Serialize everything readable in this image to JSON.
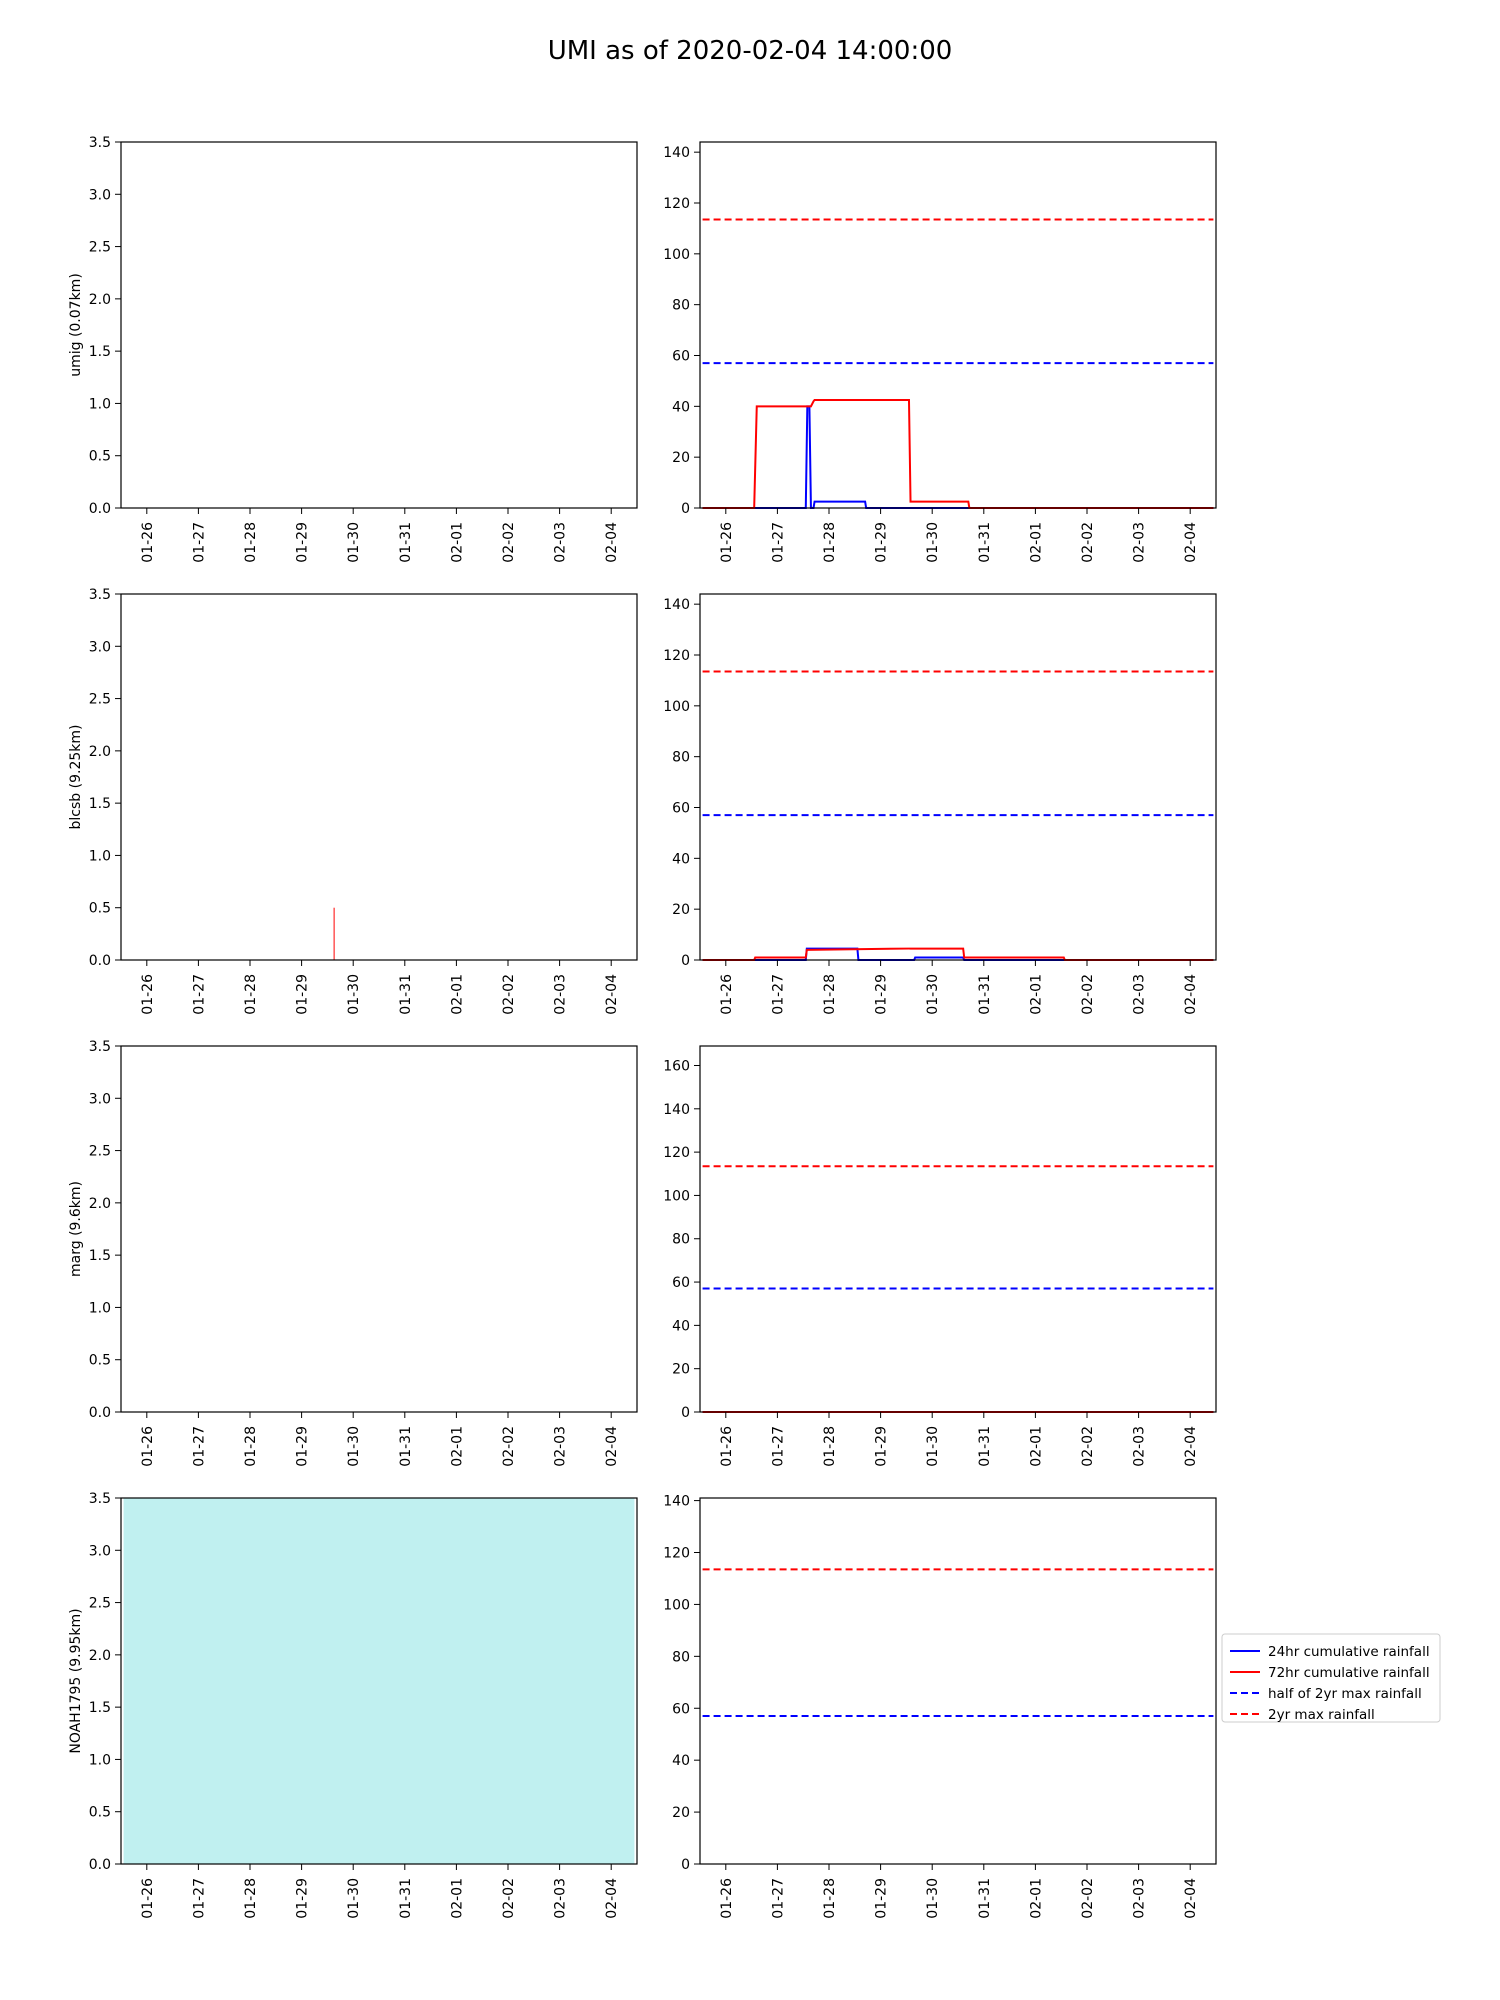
{
  "title": "UMI as of 2020-02-04 14:00:00",
  "colors": {
    "rain24": "#0000ff",
    "rain72": "#ff0000",
    "half2yr": "#0000ff",
    "max2yr": "#ff0000",
    "noah_fill": "#c0f0f0",
    "sensor_line": "#ff0000"
  },
  "legend": {
    "placement": "right of bottom-right panel",
    "items": [
      {
        "label": "24hr cumulative rainfall",
        "style": "solid",
        "color": "#0000ff"
      },
      {
        "label": "72hr cumulative rainfall",
        "style": "solid",
        "color": "#ff0000"
      },
      {
        "label": "half of 2yr max rainfall",
        "style": "dashed",
        "color": "#0000ff"
      },
      {
        "label": "2yr max rainfall",
        "style": "dashed",
        "color": "#ff0000"
      }
    ]
  },
  "chart_data": [
    {
      "type": "line",
      "ylabel": "umig (0.07km)",
      "xtick_labels": [
        "01-26",
        "01-27",
        "01-28",
        "01-29",
        "01-30",
        "01-31",
        "02-01",
        "02-02",
        "02-03",
        "02-04"
      ],
      "xlim": [
        -0.5,
        9.5
      ],
      "ylim": [
        0,
        3.5
      ],
      "yticks": [
        "0.0",
        "0.5",
        "1.0",
        "1.5",
        "2.0",
        "2.5",
        "3.0",
        "3.5"
      ],
      "series": []
    },
    {
      "type": "line",
      "xtick_labels": [
        "01-26",
        "01-27",
        "01-28",
        "01-29",
        "01-30",
        "01-31",
        "02-01",
        "02-02",
        "02-03",
        "02-04"
      ],
      "xlim": [
        -0.5,
        9.5
      ],
      "ylim": [
        0,
        144
      ],
      "yticks": [
        "0",
        "20",
        "40",
        "60",
        "80",
        "100",
        "120",
        "140"
      ],
      "thresholds": {
        "half_2yr_max": 57,
        "2yr_max": 113.5
      },
      "series": [
        {
          "key": "24hr",
          "x": [
            -0.45,
            1.55,
            1.58,
            1.62,
            1.65,
            1.7,
            1.72,
            2.7,
            2.72,
            5.9,
            9.45
          ],
          "y": [
            0,
            0,
            40,
            40,
            0,
            0,
            2.5,
            2.5,
            0,
            0,
            0
          ]
        },
        {
          "key": "72hr",
          "x": [
            -0.45,
            0.55,
            0.6,
            1.65,
            1.7,
            1.72,
            3.55,
            3.58,
            4.7,
            4.72,
            9.45
          ],
          "y": [
            0,
            0,
            40,
            40,
            42,
            42.5,
            42.5,
            2.5,
            2.5,
            0,
            0
          ]
        }
      ]
    },
    {
      "type": "line",
      "ylabel": "blcsb (9.25km)",
      "xtick_labels": [
        "01-26",
        "01-27",
        "01-28",
        "01-29",
        "01-30",
        "01-31",
        "02-01",
        "02-02",
        "02-03",
        "02-04"
      ],
      "xlim": [
        -0.5,
        9.5
      ],
      "ylim": [
        0,
        3.5
      ],
      "yticks": [
        "0.0",
        "0.5",
        "1.0",
        "1.5",
        "2.0",
        "2.5",
        "3.0",
        "3.5"
      ],
      "spikes": [
        {
          "x": 3.63,
          "y": 0.5
        }
      ],
      "series": []
    },
    {
      "type": "line",
      "xtick_labels": [
        "01-26",
        "01-27",
        "01-28",
        "01-29",
        "01-30",
        "01-31",
        "02-01",
        "02-02",
        "02-03",
        "02-04"
      ],
      "xlim": [
        -0.5,
        9.5
      ],
      "ylim": [
        0,
        144
      ],
      "yticks": [
        "0",
        "20",
        "40",
        "60",
        "80",
        "100",
        "120",
        "140"
      ],
      "thresholds": {
        "half_2yr_max": 57,
        "2yr_max": 113.5
      },
      "series": [
        {
          "key": "24hr",
          "x": [
            -0.45,
            1.55,
            1.57,
            2.55,
            2.57,
            3.65,
            3.67,
            4.6,
            4.62,
            9.45
          ],
          "y": [
            0,
            0,
            4.5,
            4.5,
            0,
            0,
            1,
            1,
            0,
            0
          ]
        },
        {
          "key": "72hr",
          "x": [
            -0.45,
            0.55,
            0.57,
            1.55,
            1.57,
            3.55,
            3.58,
            4.6,
            4.62,
            6.55,
            6.57,
            9.45
          ],
          "y": [
            0,
            0,
            1,
            1,
            4,
            4.5,
            4.5,
            4.5,
            1,
            1,
            0,
            0
          ]
        }
      ]
    },
    {
      "type": "line",
      "ylabel": "marg (9.6km)",
      "xtick_labels": [
        "01-26",
        "01-27",
        "01-28",
        "01-29",
        "01-30",
        "01-31",
        "02-01",
        "02-02",
        "02-03",
        "02-04"
      ],
      "xlim": [
        -0.5,
        9.5
      ],
      "ylim": [
        0,
        3.5
      ],
      "yticks": [
        "0.0",
        "0.5",
        "1.0",
        "1.5",
        "2.0",
        "2.5",
        "3.0",
        "3.5"
      ],
      "series": []
    },
    {
      "type": "line",
      "xtick_labels": [
        "01-26",
        "01-27",
        "01-28",
        "01-29",
        "01-30",
        "01-31",
        "02-01",
        "02-02",
        "02-03",
        "02-04"
      ],
      "xlim": [
        -0.5,
        9.5
      ],
      "ylim": [
        0,
        169
      ],
      "yticks": [
        "0",
        "20",
        "40",
        "60",
        "80",
        "100",
        "120",
        "140",
        "160"
      ],
      "thresholds": {
        "half_2yr_max": 57,
        "2yr_max": 113.5
      },
      "series": [
        {
          "key": "24hr",
          "x": [
            -0.45,
            9.45
          ],
          "y": [
            0,
            0
          ]
        },
        {
          "key": "72hr",
          "x": [
            -0.45,
            9.45
          ],
          "y": [
            0,
            0
          ]
        }
      ]
    },
    {
      "type": "area",
      "ylabel": "NOAH1795 (9.95km)",
      "xtick_labels": [
        "01-26",
        "01-27",
        "01-28",
        "01-29",
        "01-30",
        "01-31",
        "02-01",
        "02-02",
        "02-03",
        "02-04"
      ],
      "xlim": [
        -0.5,
        9.5
      ],
      "ylim": [
        0,
        3.5
      ],
      "yticks": [
        "0.0",
        "0.5",
        "1.0",
        "1.5",
        "2.0",
        "2.5",
        "3.0",
        "3.5"
      ],
      "fill": {
        "x": [
          -0.45,
          9.45
        ],
        "y": [
          3.5,
          3.5
        ]
      },
      "series": []
    },
    {
      "type": "line",
      "xtick_labels": [
        "01-26",
        "01-27",
        "01-28",
        "01-29",
        "01-30",
        "01-31",
        "02-01",
        "02-02",
        "02-03",
        "02-04"
      ],
      "xlim": [
        -0.5,
        9.5
      ],
      "ylim": [
        0,
        141
      ],
      "yticks": [
        "0",
        "20",
        "40",
        "60",
        "80",
        "100",
        "120",
        "140"
      ],
      "thresholds": {
        "half_2yr_max": 57,
        "2yr_max": 113.5
      },
      "show_legend": true,
      "series": []
    }
  ]
}
